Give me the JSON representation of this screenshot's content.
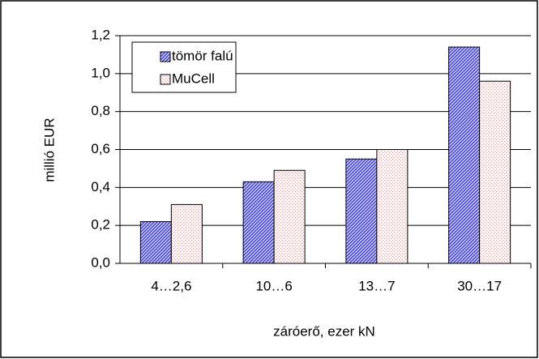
{
  "chart_data": {
    "type": "bar",
    "categories": [
      "4…2,6",
      "10…6",
      "13…7",
      "30…17"
    ],
    "series": [
      {
        "name": "tömör falú",
        "color": "#3333cc",
        "values": [
          0.22,
          0.43,
          0.55,
          1.14
        ]
      },
      {
        "name": "MuCell",
        "color": "#ff9999",
        "values": [
          0.31,
          0.49,
          0.6,
          0.96
        ]
      }
    ],
    "ylim": [
      0,
      1.2
    ],
    "yticks": [
      {
        "value": 0,
        "label": "0,0"
      },
      {
        "value": 0.2,
        "label": "0,2"
      },
      {
        "value": 0.4,
        "label": "0,4"
      },
      {
        "value": 0.6,
        "label": "0,6"
      },
      {
        "value": 0.8,
        "label": "0,8"
      },
      {
        "value": 1.0,
        "label": "1,0"
      },
      {
        "value": 1.2,
        "label": "1,2"
      }
    ],
    "ylabel": "millió EUR",
    "xlabel": "záróerő, ezer kN",
    "grid": true,
    "legend": "upper left"
  }
}
